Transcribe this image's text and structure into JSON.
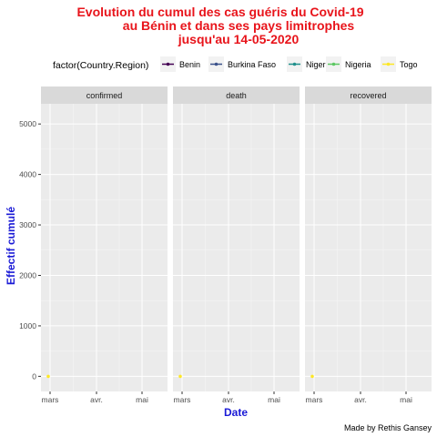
{
  "chart_data": {
    "type": "line",
    "title_lines": [
      "Evolution du cumul des cas guéris du Covid-19",
      "au Bénin et dans ses  pays limitrophes",
      "jusqu'au 14-05-2020"
    ],
    "xlabel": "Date",
    "ylabel": "Effectif cumulé",
    "caption": "Made by Rethis Gansey",
    "legend": {
      "title": "factor(Country.Region)",
      "placement": "top",
      "entries": [
        {
          "name": "Benin",
          "color": "#440154"
        },
        {
          "name": "Burkina Faso",
          "color": "#3b528b"
        },
        {
          "name": "Niger",
          "color": "#21908c"
        },
        {
          "name": "Nigeria",
          "color": "#5dc863"
        },
        {
          "name": "Togo",
          "color": "#fde725"
        }
      ]
    },
    "panels": [
      "confirmed",
      "death",
      "recovered"
    ],
    "x_ticks": [
      "mars",
      "avr.",
      "mai"
    ],
    "y_ticks": [
      0,
      1000,
      2000,
      3000,
      4000,
      5000
    ],
    "ylim": [
      -300,
      5400
    ],
    "grid": true,
    "series": [
      {
        "panel": "confirmed",
        "name": "Togo",
        "color": "#fde725",
        "x": [
          "mars"
        ],
        "y": [
          0
        ]
      },
      {
        "panel": "death",
        "name": "Togo",
        "color": "#fde725",
        "x": [
          "mars"
        ],
        "y": [
          0
        ]
      },
      {
        "panel": "recovered",
        "name": "Togo",
        "color": "#fde725",
        "x": [
          "mars"
        ],
        "y": [
          0
        ]
      }
    ]
  }
}
